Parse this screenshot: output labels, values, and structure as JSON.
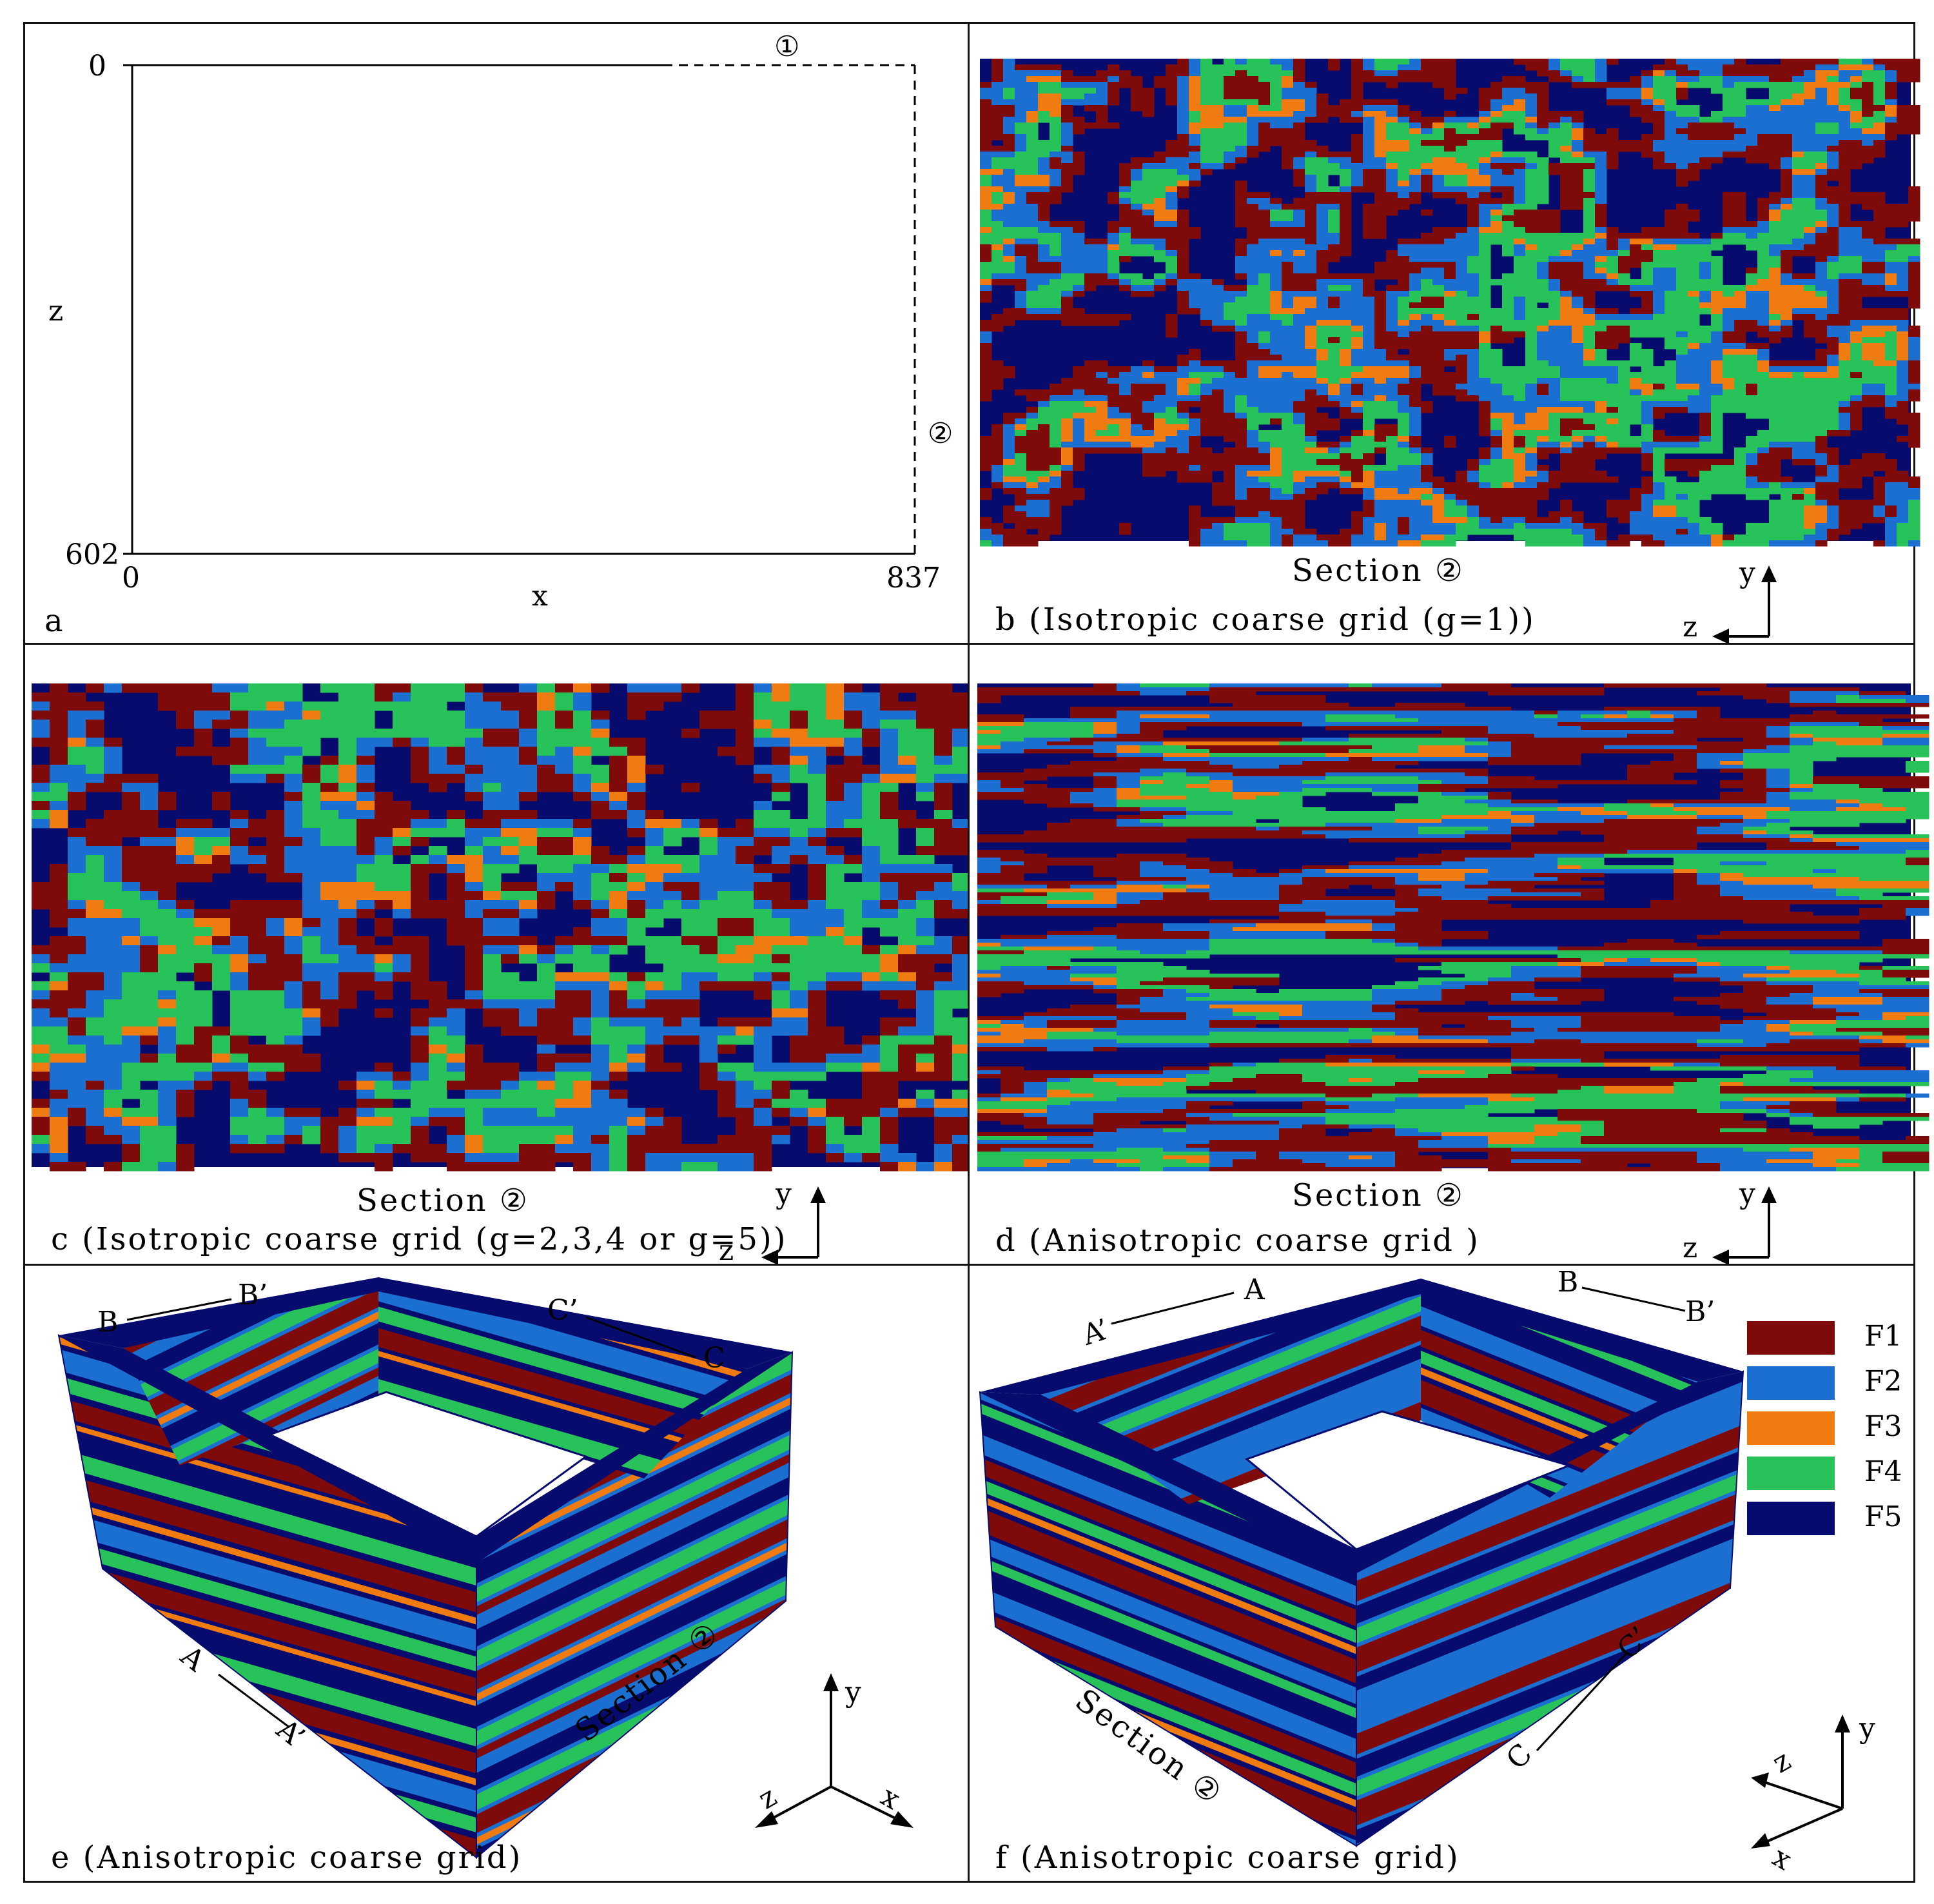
{
  "colors": {
    "F1": "#7f0a0a",
    "F2": "#1a6fd0",
    "F3": "#f07b10",
    "F4": "#27c25a",
    "F5": "#070b6e"
  },
  "panel_a": {
    "letter": "a",
    "zero_top": "0",
    "axis_z": "z",
    "z_max": "602",
    "x_zero": "0",
    "axis_x": "x",
    "x_max": "837",
    "marker_1": "①",
    "marker_2": "②"
  },
  "panel_b": {
    "section": "Section ②",
    "caption": "b (Isotropic coarse grid (g=1))",
    "axis_y": "y",
    "axis_z": "z"
  },
  "panel_c": {
    "section": "Section ②",
    "caption": "c (Isotropic coarse grid (g=2,3,4 or g=5))",
    "axis_y": "y",
    "axis_z": "z"
  },
  "panel_d": {
    "section": "Section ②",
    "caption": "d (Anisotropic coarse grid )",
    "axis_y": "y",
    "axis_z": "z"
  },
  "panel_e": {
    "caption": "e (Anisotropic coarse grid)",
    "label_B": "B",
    "label_B2": "B’",
    "label_C2": "C’",
    "label_C": "C",
    "label_A": "A",
    "label_A2": "A’",
    "section": "Section ②",
    "axis_y": "y",
    "axis_z": "z",
    "axis_x": "x"
  },
  "panel_f": {
    "caption": "f (Anisotropic coarse grid)",
    "label_A2": "A’",
    "label_A": "A",
    "label_B": "B",
    "label_B2": "B’",
    "label_C": "C",
    "label_C2": "C’",
    "section": "Section ②",
    "axis_y": "y",
    "axis_z": "z",
    "axis_x": "x"
  },
  "legend": [
    {
      "name": "F1",
      "key": "F1"
    },
    {
      "name": "F2",
      "key": "F2"
    },
    {
      "name": "F3",
      "key": "F3"
    },
    {
      "name": "F4",
      "key": "F4"
    },
    {
      "name": "F5",
      "key": "F5"
    }
  ]
}
